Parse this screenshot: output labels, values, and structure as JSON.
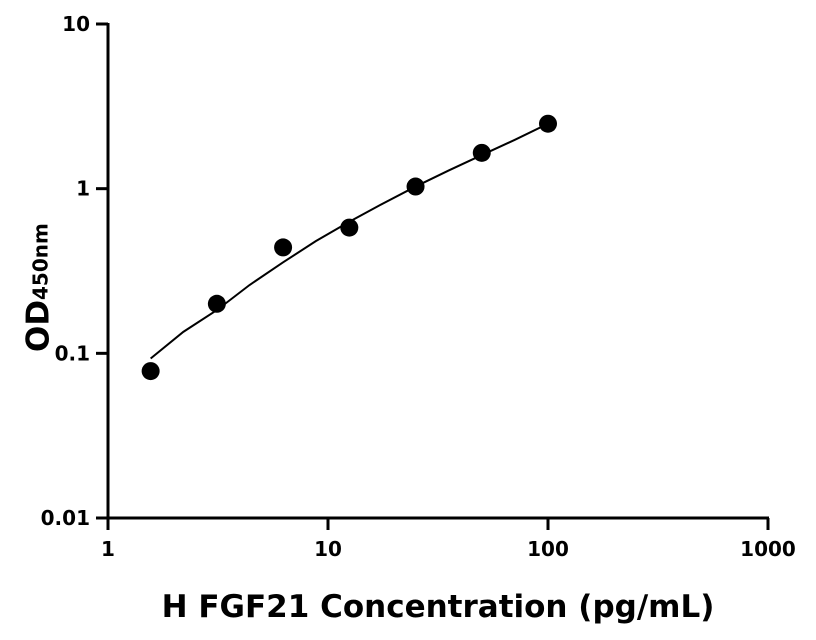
{
  "chart_data": {
    "type": "scatter",
    "x_label": "H FGF21 Concentration (pg/mL)",
    "y_label": "OD",
    "y_label_sub": "450nm",
    "xscale": "log",
    "yscale": "log",
    "xlim": [
      1,
      1000
    ],
    "xticks": [
      1,
      10,
      100,
      1000
    ],
    "ylim": [
      0.01,
      10
    ],
    "yticks": [
      0.01,
      0.1,
      1,
      10
    ],
    "series": [
      {
        "style": "points",
        "color": "#000000",
        "x": [
          1.5625,
          3.125,
          6.25,
          12.5,
          25,
          50,
          100
        ],
        "values": [
          0.078,
          0.2,
          0.44,
          0.58,
          1.03,
          1.65,
          2.48
        ]
      },
      {
        "style": "line",
        "color": "#000000",
        "x": [
          1.5625,
          2.2,
          3.125,
          4.4,
          6.25,
          8.8,
          12.5,
          17.7,
          25,
          35.4,
          50,
          70.7,
          100
        ],
        "values": [
          0.093,
          0.135,
          0.183,
          0.26,
          0.357,
          0.48,
          0.63,
          0.81,
          1.03,
          1.29,
          1.6,
          1.98,
          2.48
        ]
      }
    ]
  }
}
